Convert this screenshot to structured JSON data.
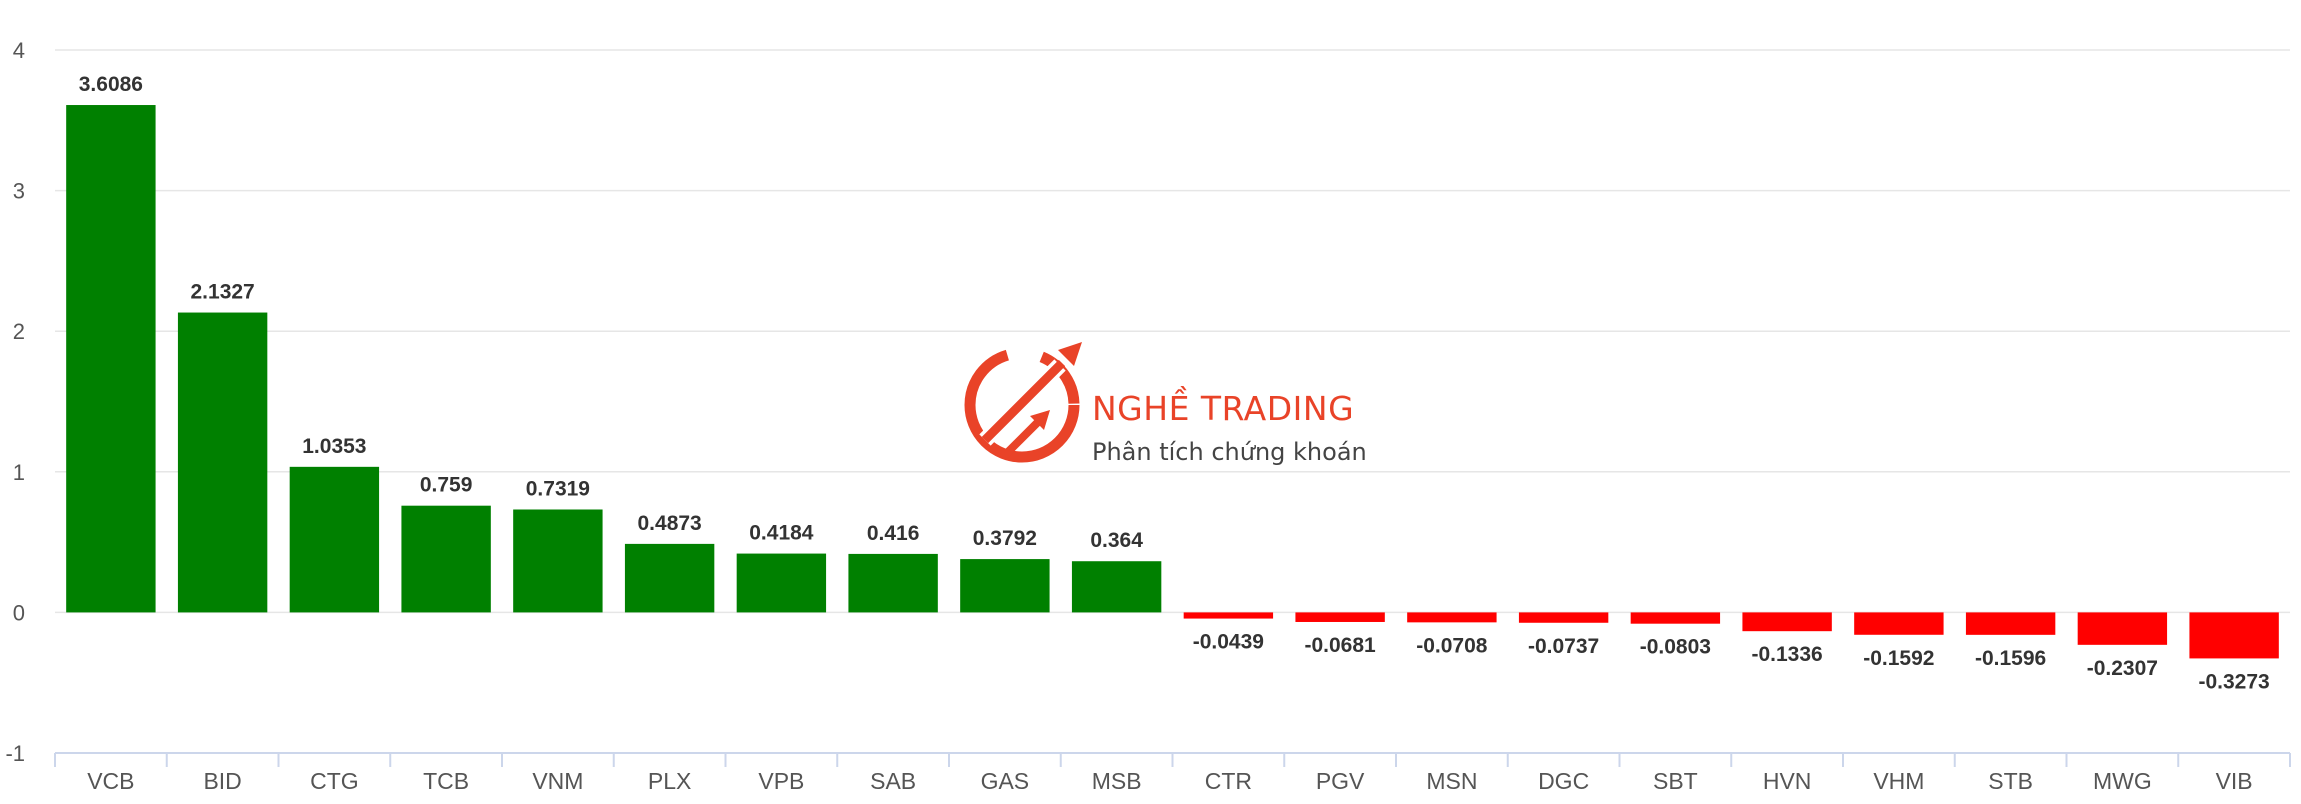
{
  "chart_data": {
    "type": "bar",
    "categories": [
      "VCB",
      "BID",
      "CTG",
      "TCB",
      "VNM",
      "PLX",
      "VPB",
      "SAB",
      "GAS",
      "MSB",
      "CTR",
      "PGV",
      "MSN",
      "DGC",
      "SBT",
      "HVN",
      "VHM",
      "STB",
      "MWG",
      "VIB"
    ],
    "values": [
      3.6086,
      2.1327,
      1.0353,
      0.759,
      0.7319,
      0.4873,
      0.4184,
      0.416,
      0.3792,
      0.364,
      -0.0439,
      -0.0681,
      -0.0708,
      -0.0737,
      -0.0803,
      -0.1336,
      -0.1592,
      -0.1596,
      -0.2307,
      -0.3273
    ],
    "value_labels": [
      "3.6086",
      "2.1327",
      "1.0353",
      "0.759",
      "0.7319",
      "0.4873",
      "0.4184",
      "0.416",
      "0.3792",
      "0.364",
      "-0.0439",
      "-0.0681",
      "-0.0708",
      "-0.0737",
      "-0.0803",
      "-0.1336",
      "-0.1592",
      "-0.1596",
      "-0.2307",
      "-0.3273"
    ],
    "ylim": [
      -1,
      4
    ],
    "yticks": [
      -1,
      0,
      1,
      2,
      3,
      4
    ],
    "grid": true,
    "colors": {
      "positive": "#008000",
      "negative": "#ff0000",
      "grid": "#e6e6e6",
      "axis": "#ccd6eb"
    }
  },
  "watermark": {
    "title": "NGHỀ TRADING",
    "subtitle": "Phân tích chứng khoán",
    "color": "#e8391d"
  }
}
